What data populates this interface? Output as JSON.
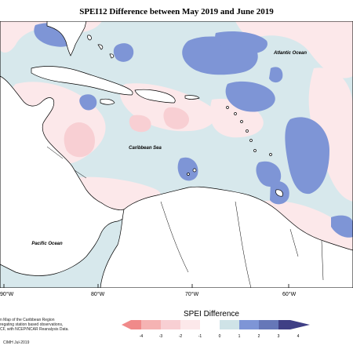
{
  "map": {
    "title": "SPEI12 Difference between May 2019 and June 2019",
    "labels": {
      "atlantic": "Atlantic Ocean",
      "caribbean": "Caribbean Sea",
      "pacific": "Pacific Ocean"
    },
    "longitudes": [
      "90°W",
      "80°W",
      "70°W",
      "60°W"
    ],
    "colors": {
      "neg4": "#f08a8a",
      "neg3": "#f5b3b3",
      "neg2": "#f8cfd3",
      "neg1": "#fce8ea",
      "pos1": "#cfe3e7",
      "pos2": "#7e95d6",
      "pos3": "#6677b8",
      "pos4": "#3f3f85",
      "land": "#ffffff",
      "coast": "#000000"
    }
  },
  "legend": {
    "title": "SPEI Difference",
    "ticks": [
      "-4",
      "-3",
      "-2",
      "-1",
      "0",
      "1",
      "2",
      "3",
      "4"
    ]
  },
  "footer": {
    "line1": "n Map of the Caribbean Region",
    "line2": "regating station based observations,",
    "line3": "CF, with NCEP/NCAR Reanalysis Data.",
    "credit": "CIMH Jul-2019"
  }
}
